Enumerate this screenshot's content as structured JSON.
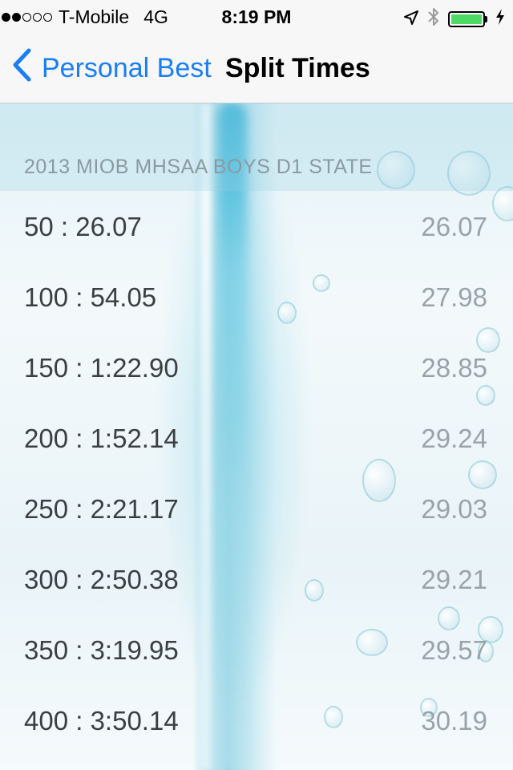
{
  "status_bar": {
    "carrier": "T-Mobile",
    "network": "4G",
    "time": "8:19 PM",
    "signal_bars_filled": 2,
    "signal_bars_total": 5,
    "battery_level": 1.0,
    "battery_color": "#4cd964",
    "icons": [
      "location-arrow-icon",
      "bluetooth-icon",
      "battery-icon",
      "charging-bolt-icon"
    ]
  },
  "nav": {
    "back_label": "Personal Best",
    "title": "Split Times",
    "accent_color": "#1a7ef5"
  },
  "section": {
    "header": "2013 MIOB MHSAA BOYS D1 STATE"
  },
  "splits": [
    {
      "label": "50 : 26.07",
      "split": "26.07"
    },
    {
      "label": "100 : 54.05",
      "split": "27.98"
    },
    {
      "label": "150 : 1:22.90",
      "split": "28.85"
    },
    {
      "label": "200 : 1:52.14",
      "split": "29.24"
    },
    {
      "label": "250 : 2:21.17",
      "split": "29.03"
    },
    {
      "label": "300 : 2:50.38",
      "split": "29.21"
    },
    {
      "label": "350 : 3:19.95",
      "split": "29.57"
    },
    {
      "label": "400 : 3:50.14",
      "split": "30.19"
    }
  ]
}
